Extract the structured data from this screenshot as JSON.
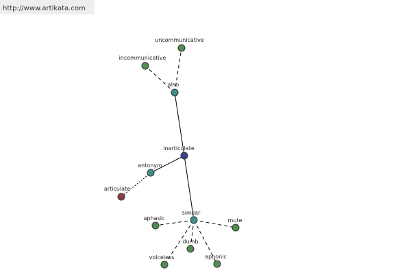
{
  "header": {
    "url": "http://www.artikata.com"
  },
  "nodes": [
    {
      "label": "inarticulate"
    },
    {
      "label": "also"
    },
    {
      "label": "uncommunicative"
    },
    {
      "label": "incommunicative"
    },
    {
      "label": "antonym"
    },
    {
      "label": "articulate"
    },
    {
      "label": "similar"
    },
    {
      "label": "aphasic"
    },
    {
      "label": "mute"
    },
    {
      "label": "dumb"
    },
    {
      "label": "voiceless"
    },
    {
      "label": "aphonic"
    }
  ]
}
